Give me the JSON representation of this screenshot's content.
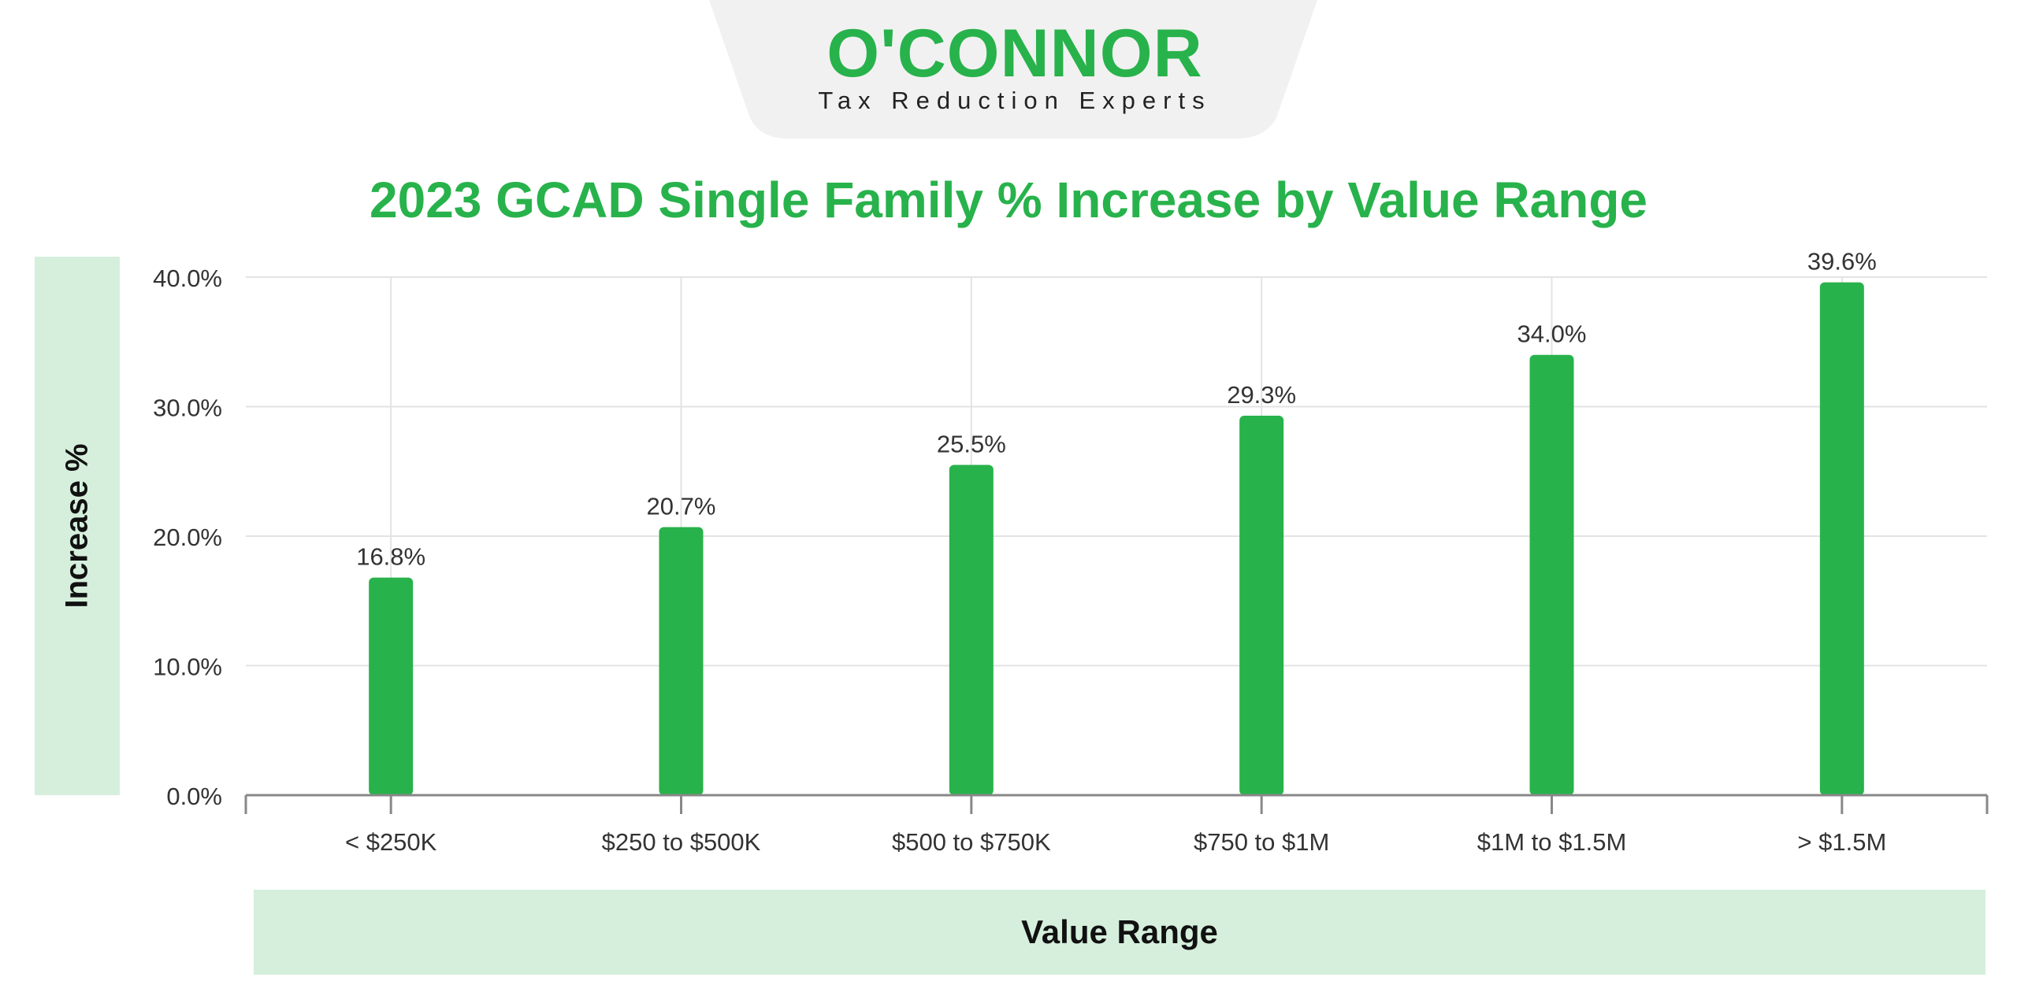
{
  "logo": {
    "wordmark": "O'CONNOR",
    "tagline": "Tax Reduction Experts"
  },
  "colors": {
    "bar": "#28b24b",
    "title": "#28b24b",
    "label_box": "#d5efdc",
    "grid": "#e3e3e3",
    "axis": "#888888",
    "tick_text": "#333333",
    "logo_tab": "#f1f1f1"
  },
  "chart_data": {
    "type": "bar",
    "title": "2023 GCAD Single Family % Increase by Value Range",
    "xlabel": "Value Range",
    "ylabel": "Increase %",
    "categories": [
      "< $250K",
      "$250 to $500K",
      "$500 to $750K",
      "$750 to $1M",
      "$1M to $1.5M",
      "> $1.5M"
    ],
    "values": [
      16.8,
      20.7,
      25.5,
      29.3,
      34.0,
      39.6
    ],
    "value_labels": [
      "16.8%",
      "20.7%",
      "25.5%",
      "29.3%",
      "34.0%",
      "39.6%"
    ],
    "ylim": [
      0,
      40
    ],
    "yticks": [
      0,
      10,
      20,
      30,
      40
    ],
    "ytick_labels": [
      "0.0%",
      "10.0%",
      "20.0%",
      "30.0%",
      "40.0%"
    ],
    "grid": true,
    "legend": "none"
  }
}
